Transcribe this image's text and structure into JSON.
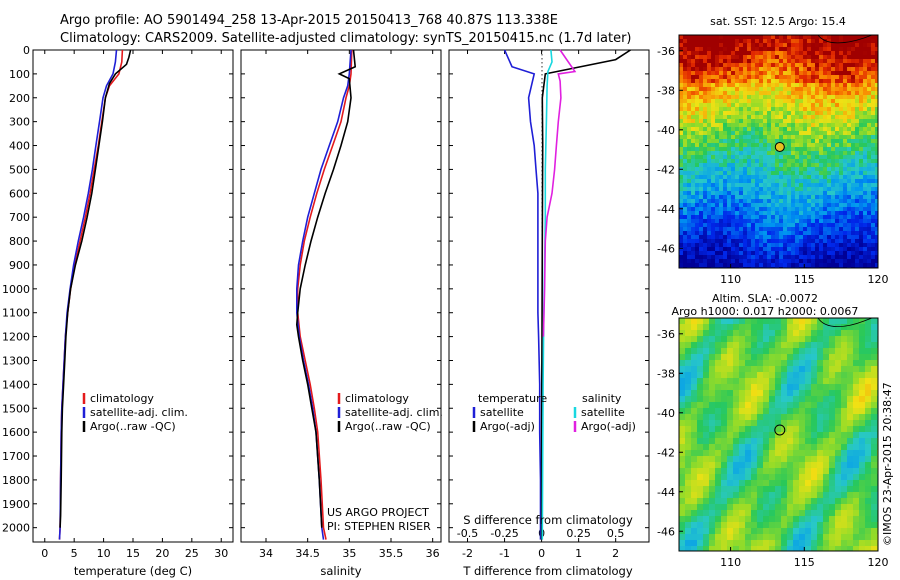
{
  "header": {
    "line1": "Argo profile: AO 5901494_258 13-Apr-2015 20150413_768 40.87S 113.338E",
    "line2": "Climatology: CARS2009. Satellite-adjusted climatology: synTS_20150415.nc (1.7d later)"
  },
  "colors": {
    "climatology": "#e41a1c",
    "satellite": "#1f1fd6",
    "argo": "#000000",
    "sal_satellite": "#18d8e0",
    "sal_argo": "#e020e0"
  },
  "credit": {
    "line1": "US ARGO PROJECT",
    "line2": "PI: STEPHEN RISER"
  },
  "watermark": "©IMOS 23-Apr-2015 20:38:47",
  "chart_data": [
    {
      "type": "line",
      "panel": "temperature",
      "xlabel": "temperature (deg C)",
      "ylabel": "",
      "xlim": [
        -2,
        32
      ],
      "ylim": [
        2060,
        0
      ],
      "xticks": [
        0,
        5,
        10,
        15,
        20,
        25,
        30
      ],
      "yticks": [
        0,
        100,
        200,
        300,
        400,
        500,
        600,
        700,
        800,
        900,
        1000,
        1100,
        1200,
        1300,
        1400,
        1500,
        1600,
        1700,
        1800,
        1900,
        2000
      ],
      "legend_position": "lower-middle",
      "series": [
        {
          "name": "climatology",
          "color_key": "climatology",
          "x": [
            13.2,
            13.1,
            12.6,
            11.0,
            10.3,
            9.7,
            9.1,
            8.4,
            7.7,
            6.9,
            6.0,
            5.1,
            4.4,
            3.9,
            3.5,
            3.3,
            3.1,
            2.9,
            2.8,
            2.7,
            2.6,
            2.5
          ],
          "y": [
            0,
            50,
            100,
            150,
            200,
            300,
            400,
            500,
            600,
            700,
            800,
            900,
            1000,
            1100,
            1200,
            1300,
            1400,
            1500,
            1600,
            1800,
            2000,
            2050
          ]
        },
        {
          "name": "satellite-adj. clim.",
          "color_key": "satellite",
          "x": [
            12.2,
            12.0,
            11.6,
            10.5,
            9.9,
            9.3,
            8.7,
            8.1,
            7.4,
            6.6,
            5.7,
            4.9,
            4.3,
            3.8,
            3.5,
            3.3,
            3.1,
            2.9,
            2.8,
            2.7,
            2.6,
            2.5
          ],
          "y": [
            0,
            50,
            100,
            150,
            200,
            300,
            400,
            500,
            600,
            700,
            800,
            900,
            1000,
            1100,
            1200,
            1300,
            1400,
            1500,
            1600,
            1800,
            2000,
            2050
          ]
        },
        {
          "name": "Argo(..raw -QC)",
          "color_key": "argo",
          "x": [
            14.6,
            14.3,
            13.9,
            12.0,
            11.0,
            10.3,
            9.8,
            9.2,
            8.6,
            8.0,
            7.2,
            6.3,
            5.2,
            4.4,
            3.9,
            3.6,
            3.4,
            3.2,
            3.0,
            2.9,
            2.8,
            2.7,
            2.6
          ],
          "y": [
            0,
            30,
            60,
            100,
            140,
            200,
            300,
            400,
            500,
            600,
            700,
            800,
            900,
            1000,
            1100,
            1200,
            1300,
            1400,
            1500,
            1600,
            1800,
            1950,
            2000
          ]
        }
      ]
    },
    {
      "type": "line",
      "panel": "salinity",
      "xlabel": "salinity",
      "ylabel": "",
      "xlim": [
        33.7,
        36.1
      ],
      "ylim": [
        2060,
        0
      ],
      "xticks": [
        34,
        34.5,
        35,
        35.5,
        36
      ],
      "legend_position": "lower-middle",
      "series": [
        {
          "name": "climatology",
          "color_key": "climatology",
          "x": [
            35.03,
            35.02,
            35.0,
            34.96,
            34.9,
            34.8,
            34.7,
            34.61,
            34.53,
            34.46,
            34.41,
            34.38,
            34.38,
            34.41,
            34.47,
            34.53,
            34.58,
            34.62,
            34.66,
            34.69,
            34.72
          ],
          "y": [
            0,
            100,
            150,
            200,
            300,
            400,
            500,
            600,
            700,
            800,
            900,
            1000,
            1100,
            1200,
            1300,
            1400,
            1500,
            1600,
            1800,
            2000,
            2050
          ]
        },
        {
          "name": "satellite-adj. clim.",
          "color_key": "satellite",
          "x": [
            35.02,
            35.0,
            34.98,
            34.93,
            34.86,
            34.76,
            34.66,
            34.58,
            34.5,
            34.44,
            34.39,
            34.37,
            34.37,
            34.4,
            34.45,
            34.51,
            34.56,
            34.6,
            34.64,
            34.67,
            34.69
          ],
          "y": [
            0,
            100,
            150,
            200,
            300,
            400,
            500,
            600,
            700,
            800,
            900,
            1000,
            1100,
            1200,
            1300,
            1400,
            1500,
            1600,
            1800,
            2000,
            2050
          ]
        },
        {
          "name": "Argo(..raw -QC)",
          "color_key": "argo",
          "x": [
            35.05,
            35.07,
            34.88,
            35.0,
            35.02,
            34.98,
            34.9,
            34.81,
            34.71,
            34.62,
            34.54,
            34.47,
            34.41,
            34.38,
            34.37,
            34.39,
            34.44,
            34.5,
            34.55,
            34.6,
            34.64,
            34.67
          ],
          "y": [
            0,
            70,
            100,
            120,
            200,
            300,
            400,
            500,
            600,
            700,
            800,
            900,
            1000,
            1100,
            1150,
            1200,
            1300,
            1400,
            1500,
            1600,
            1800,
            2000
          ]
        }
      ]
    },
    {
      "type": "line",
      "panel": "difference",
      "xlabel": "T difference from climatology",
      "xlabel2": "S difference from climatology",
      "xlim": [
        -2.5,
        2.9
      ],
      "xlim_top": [
        -0.625,
        0.725
      ],
      "ylim": [
        2060,
        0
      ],
      "xticks": [
        -2,
        -1,
        0,
        1,
        2
      ],
      "xticks_top": [
        -0.5,
        -0.25,
        0,
        0.25,
        0.5
      ],
      "legend_position": "lower-middle",
      "legend_titles": [
        "temperature",
        "salinity"
      ],
      "series": [
        {
          "name": "satellite",
          "group": "temperature",
          "color_key": "satellite",
          "x": [
            -1.0,
            -0.8,
            -0.2,
            -0.35,
            -0.3,
            -0.2,
            -0.15,
            -0.1,
            -0.1,
            -0.1,
            -0.1,
            -0.1,
            -0.08,
            -0.05,
            -0.05,
            -0.03,
            -0.03
          ],
          "y": [
            0,
            70,
            100,
            200,
            300,
            400,
            500,
            600,
            800,
            900,
            1000,
            1100,
            1200,
            1400,
            1600,
            1800,
            2050
          ]
        },
        {
          "name": "Argo(-adj)",
          "group": "temperature",
          "color_key": "argo",
          "x": [
            2.4,
            2.0,
            0.1,
            0.02,
            0.03,
            0.02,
            0.01,
            0.0,
            0.0,
            0.0
          ],
          "y": [
            0,
            40,
            100,
            200,
            400,
            800,
            1200,
            1600,
            1800,
            2050
          ]
        },
        {
          "name": "satellite",
          "group": "salinity",
          "color_key": "sal_satellite",
          "x": [
            0.25,
            0.28,
            0.17,
            0.15,
            0.13,
            0.1,
            0.1,
            0.08,
            0.06,
            0.04,
            0.03,
            0.02
          ],
          "y": [
            0,
            50,
            90,
            150,
            300,
            500,
            700,
            900,
            1100,
            1400,
            1700,
            2050
          ]
        },
        {
          "name": "Argo(-adj)",
          "group": "salinity",
          "color_key": "sal_argo",
          "x": [
            0.5,
            0.9,
            0.45,
            0.5,
            0.52,
            0.45,
            0.4,
            0.35,
            0.28,
            0.15,
            0.1,
            0.08,
            0.05
          ],
          "y": [
            0,
            90,
            100,
            130,
            200,
            300,
            400,
            500,
            600,
            700,
            800,
            1000,
            1200
          ]
        }
      ]
    },
    {
      "type": "heatmap",
      "panel": "sst_map",
      "title": "sat. SST: 12.5  Argo: 15.4",
      "xlim": [
        106.5,
        120
      ],
      "ylim": [
        -47,
        -35.2
      ],
      "xticks": [
        110,
        115,
        120
      ],
      "yticks": [
        -36,
        -38,
        -40,
        -42,
        -44,
        -46
      ],
      "marker": {
        "lon": 113.338,
        "lat": -40.87,
        "fill": "#e8c020"
      }
    },
    {
      "type": "heatmap",
      "panel": "sla_map",
      "title": "Altim. SLA: -0.0072",
      "subtitle": "Argo h1000: 0.017 h2000: 0.0067",
      "xlim": [
        106.5,
        120
      ],
      "ylim": [
        -47,
        -35.2
      ],
      "xticks": [
        110,
        115,
        120
      ],
      "yticks": [
        -36,
        -38,
        -40,
        -42,
        -44,
        -46
      ],
      "marker": {
        "lon": 113.338,
        "lat": -40.87,
        "fill": "none"
      }
    }
  ]
}
